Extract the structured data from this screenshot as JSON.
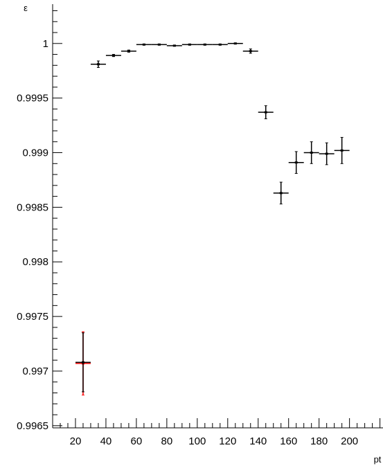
{
  "chart_data": {
    "type": "scatter",
    "title": "",
    "xlabel": "pt",
    "ylabel": "ε",
    "xlim": [
      5,
      222
    ],
    "ylim": [
      0.99648,
      1.00036
    ],
    "x_ticks": [
      20,
      40,
      60,
      80,
      100,
      120,
      140,
      160,
      180,
      200
    ],
    "y_ticks": [
      0.9965,
      0.997,
      0.9975,
      0.998,
      0.9985,
      0.999,
      0.9995,
      1
    ],
    "y_tick_labels": [
      "0.9965",
      "0.997",
      "0.9975",
      "0.998",
      "0.9985",
      "0.999",
      "0.9995",
      "1"
    ],
    "grid": false,
    "series": [
      {
        "color": "#000000",
        "points": [
          {
            "x": 25,
            "xerr": 5,
            "y": 0.99708,
            "yerr": 0.00027
          },
          {
            "x": 35,
            "xerr": 5,
            "y": 0.99981,
            "yerr": 3e-05
          },
          {
            "x": 45,
            "xerr": 5,
            "y": 0.99989,
            "yerr": 1e-05
          },
          {
            "x": 55,
            "xerr": 5,
            "y": 0.99993,
            "yerr": 1e-05
          },
          {
            "x": 65,
            "xerr": 5,
            "y": 0.99999,
            "yerr": 5e-06
          },
          {
            "x": 75,
            "xerr": 5,
            "y": 0.99999,
            "yerr": 5e-06
          },
          {
            "x": 85,
            "xerr": 5,
            "y": 0.99998,
            "yerr": 5e-06
          },
          {
            "x": 95,
            "xerr": 5,
            "y": 0.99999,
            "yerr": 5e-06
          },
          {
            "x": 105,
            "xerr": 5,
            "y": 0.99999,
            "yerr": 5e-06
          },
          {
            "x": 115,
            "xerr": 5,
            "y": 0.99999,
            "yerr": 5e-06
          },
          {
            "x": 125,
            "xerr": 5,
            "y": 1.0,
            "yerr": 5e-06
          },
          {
            "x": 135,
            "xerr": 5,
            "y": 0.99993,
            "yerr": 2e-05
          },
          {
            "x": 145,
            "xerr": 5,
            "y": 0.99937,
            "yerr": 6e-05
          },
          {
            "x": 155,
            "xerr": 5,
            "y": 0.99863,
            "yerr": 0.0001
          },
          {
            "x": 165,
            "xerr": 5,
            "y": 0.99891,
            "yerr": 0.0001
          },
          {
            "x": 175,
            "xerr": 5,
            "y": 0.999,
            "yerr": 0.0001
          },
          {
            "x": 185,
            "xerr": 5,
            "y": 0.99899,
            "yerr": 0.0001
          },
          {
            "x": 195,
            "xerr": 5,
            "y": 0.99902,
            "yerr": 0.00012
          }
        ]
      },
      {
        "color": "#ff0000",
        "points": [
          {
            "x": 25,
            "xerr": 5,
            "y": 0.99707,
            "yerr": 0.00029
          }
        ]
      }
    ]
  }
}
